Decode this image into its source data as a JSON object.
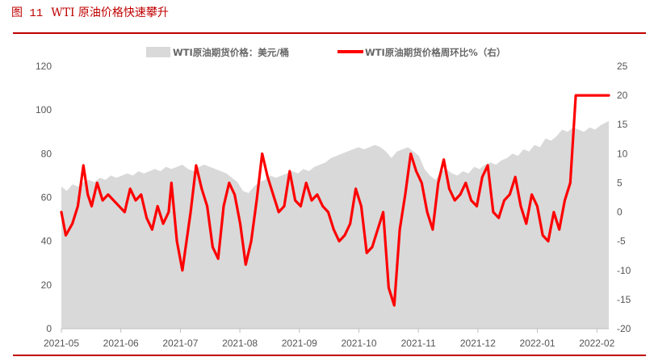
{
  "figure": {
    "number": "图 11",
    "title": "WTI 原油价格快速攀升"
  },
  "colors": {
    "accent": "#c00000",
    "area": "#d9d9d9",
    "line": "#ff0000"
  },
  "chart_data": {
    "type": "area+line",
    "x_tick_labels": [
      "2021-05",
      "2021-06",
      "2021-07",
      "2021-08",
      "2021-09",
      "2021-10",
      "2021-11",
      "2021-12",
      "2022-01",
      "2022-02"
    ],
    "y_left": {
      "range": [
        0,
        120
      ],
      "ticks": [
        "0",
        "20",
        "40",
        "60",
        "80",
        "100",
        "120"
      ]
    },
    "y_right": {
      "range": [
        -20,
        25
      ],
      "ticks": [
        "-20",
        "-15",
        "-10",
        "-5",
        "0",
        "5",
        "10",
        "15",
        "20",
        "25"
      ]
    },
    "legend": [
      "WTI原油期货价格：美元/桶",
      "WTI原油期货价格周环比%（右）"
    ],
    "legend_position": "top",
    "x_range": [
      0,
      9.95
    ],
    "series": [
      {
        "name": "WTI原油期货价格：美元/桶",
        "type": "area",
        "axis": "left",
        "x": [
          0,
          0.1,
          0.2,
          0.3,
          0.4,
          0.5,
          0.6,
          0.7,
          0.8,
          0.9,
          1.0,
          1.1,
          1.2,
          1.3,
          1.4,
          1.5,
          1.6,
          1.7,
          1.8,
          1.9,
          2.0,
          2.1,
          2.2,
          2.3,
          2.4,
          2.5,
          2.6,
          2.7,
          2.8,
          2.9,
          3.0,
          3.1,
          3.2,
          3.3,
          3.4,
          3.5,
          3.6,
          3.7,
          3.8,
          3.9,
          4.0,
          4.1,
          4.2,
          4.3,
          4.4,
          4.5,
          4.6,
          4.7,
          4.8,
          4.9,
          5.0,
          5.1,
          5.2,
          5.3,
          5.4,
          5.5,
          5.6,
          5.7,
          5.8,
          5.9,
          6.0,
          6.1,
          6.2,
          6.3,
          6.4,
          6.5,
          6.6,
          6.7,
          6.8,
          6.9,
          7.0,
          7.1,
          7.2,
          7.3,
          7.4,
          7.5,
          7.6,
          7.7,
          7.8,
          7.9,
          8.0,
          8.1,
          8.2,
          8.3,
          8.4,
          8.5,
          8.6,
          8.7,
          8.8,
          8.9,
          9.0,
          9.1,
          9.2,
          9.3,
          9.4,
          9.5,
          9.6,
          9.7,
          9.8,
          9.95
        ],
        "values": [
          65,
          63,
          66,
          65,
          67,
          68,
          67,
          69,
          68,
          70,
          69,
          70,
          71,
          70,
          72,
          71,
          72,
          73,
          72,
          74,
          73,
          74,
          75,
          73,
          72,
          74,
          75,
          74,
          73,
          72,
          71,
          69,
          67,
          63,
          62,
          65,
          67,
          68,
          70,
          69,
          70,
          71,
          72,
          71,
          73,
          72,
          74,
          75,
          76,
          78,
          79,
          80,
          81,
          82,
          83,
          82,
          83,
          84,
          83,
          81,
          78,
          81,
          82,
          83,
          81,
          79,
          73,
          70,
          68,
          72,
          73,
          71,
          70,
          72,
          71,
          74,
          73,
          75,
          76,
          75,
          77,
          78,
          80,
          79,
          82,
          81,
          84,
          83,
          87,
          86,
          88,
          91,
          90,
          92,
          91,
          90,
          92,
          91,
          93,
          95
        ]
      },
      {
        "name": "WTI原油期货价格周环比%（右）",
        "type": "line",
        "axis": "right",
        "x": [
          0,
          0.08,
          0.2,
          0.3,
          0.4,
          0.48,
          0.55,
          0.65,
          0.75,
          0.85,
          0.95,
          1.05,
          1.15,
          1.25,
          1.35,
          1.45,
          1.55,
          1.65,
          1.75,
          1.85,
          1.95,
          2.0,
          2.1,
          2.2,
          2.35,
          2.45,
          2.55,
          2.65,
          2.75,
          2.85,
          2.95,
          3.05,
          3.15,
          3.25,
          3.35,
          3.45,
          3.55,
          3.65,
          3.75,
          3.85,
          3.95,
          4.05,
          4.15,
          4.25,
          4.35,
          4.45,
          4.55,
          4.65,
          4.75,
          4.85,
          4.95,
          5.05,
          5.15,
          5.25,
          5.35,
          5.45,
          5.55,
          5.65,
          5.75,
          5.85,
          5.95,
          6.05,
          6.15,
          6.25,
          6.35,
          6.45,
          6.55,
          6.65,
          6.75,
          6.85,
          6.95,
          7.05,
          7.15,
          7.25,
          7.35,
          7.45,
          7.55,
          7.65,
          7.75,
          7.85,
          7.95,
          8.05,
          8.15,
          8.25,
          8.35,
          8.45,
          8.55,
          8.65,
          8.75,
          8.85,
          8.95,
          9.05,
          9.15,
          9.25,
          9.35,
          9.45,
          9.55,
          9.65,
          9.75,
          9.85,
          9.95
        ],
        "values": [
          0,
          -4,
          -2,
          1,
          8,
          3,
          1,
          5,
          2,
          3,
          2,
          1,
          0,
          4,
          2,
          3,
          -1,
          -3,
          1,
          -2,
          0,
          5,
          -5,
          -10,
          0,
          8,
          4,
          1,
          -6,
          -8,
          1,
          5,
          3,
          -2,
          -9,
          -5,
          2,
          10,
          6,
          3,
          0,
          1,
          7,
          2,
          1,
          5,
          2,
          3,
          1,
          0,
          -3,
          -5,
          -4,
          -2,
          4,
          1,
          -7,
          -6,
          -3,
          0,
          -13,
          -16,
          -3,
          3,
          10,
          7,
          5,
          0,
          -3,
          5,
          9,
          4,
          2,
          3,
          5,
          2,
          1,
          6,
          8,
          0,
          -1,
          2,
          3,
          6,
          1,
          -2,
          3,
          1,
          -4,
          -5,
          0,
          -3,
          2,
          5,
          20,
          20,
          20,
          20,
          20,
          20,
          20
        ]
      }
    ]
  }
}
